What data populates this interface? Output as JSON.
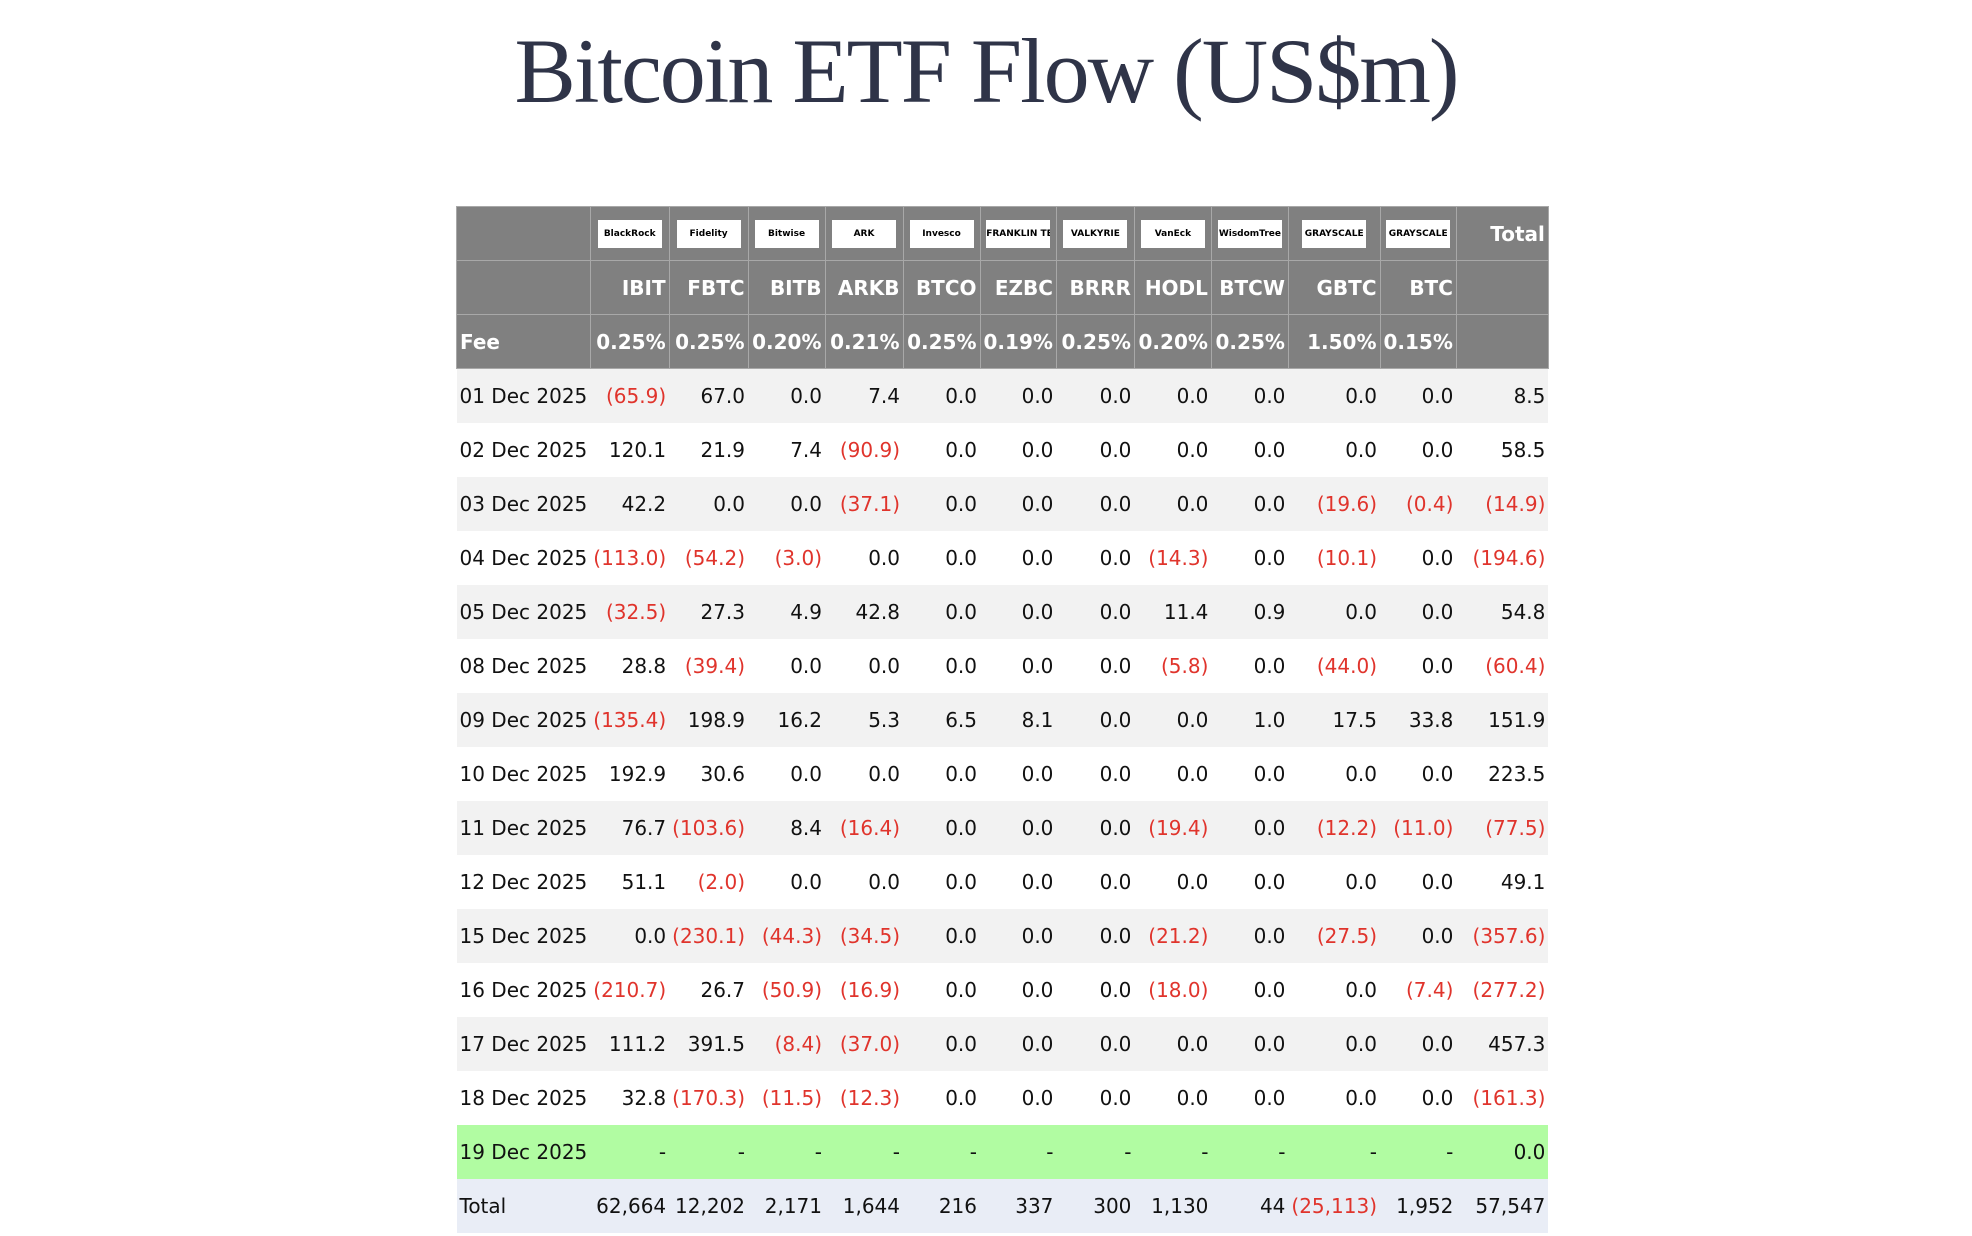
{
  "title": "Bitcoin ETF Flow (US$m)",
  "table": {
    "logos": [
      "BlackRock",
      "Fidelity",
      "Bitwise",
      "ARK",
      "Invesco",
      "FRANKLIN TEMPLETON",
      "VALKYRIE",
      "VanEck",
      "WisdomTree",
      "GRAYSCALE",
      "GRAYSCALE"
    ],
    "total_header": "Total",
    "tickers": [
      "IBIT",
      "FBTC",
      "BITB",
      "ARKB",
      "BTCO",
      "EZBC",
      "BRRR",
      "HODL",
      "BTCW",
      "GBTC",
      "BTC"
    ],
    "fee_label": "Fee",
    "fees": [
      "0.25%",
      "0.25%",
      "0.20%",
      "0.21%",
      "0.25%",
      "0.19%",
      "0.25%",
      "0.20%",
      "0.25%",
      "1.50%",
      "0.15%"
    ],
    "rows": [
      [
        "01 Dec 2025",
        "(65.9)",
        "67.0",
        "0.0",
        "7.4",
        "0.0",
        "0.0",
        "0.0",
        "0.0",
        "0.0",
        "0.0",
        "0.0",
        "8.5"
      ],
      [
        "02 Dec 2025",
        "120.1",
        "21.9",
        "7.4",
        "(90.9)",
        "0.0",
        "0.0",
        "0.0",
        "0.0",
        "0.0",
        "0.0",
        "0.0",
        "58.5"
      ],
      [
        "03 Dec 2025",
        "42.2",
        "0.0",
        "0.0",
        "(37.1)",
        "0.0",
        "0.0",
        "0.0",
        "0.0",
        "0.0",
        "(19.6)",
        "(0.4)",
        "(14.9)"
      ],
      [
        "04 Dec 2025",
        "(113.0)",
        "(54.2)",
        "(3.0)",
        "0.0",
        "0.0",
        "0.0",
        "0.0",
        "(14.3)",
        "0.0",
        "(10.1)",
        "0.0",
        "(194.6)"
      ],
      [
        "05 Dec 2025",
        "(32.5)",
        "27.3",
        "4.9",
        "42.8",
        "0.0",
        "0.0",
        "0.0",
        "11.4",
        "0.9",
        "0.0",
        "0.0",
        "54.8"
      ],
      [
        "08 Dec 2025",
        "28.8",
        "(39.4)",
        "0.0",
        "0.0",
        "0.0",
        "0.0",
        "0.0",
        "(5.8)",
        "0.0",
        "(44.0)",
        "0.0",
        "(60.4)"
      ],
      [
        "09 Dec 2025",
        "(135.4)",
        "198.9",
        "16.2",
        "5.3",
        "6.5",
        "8.1",
        "0.0",
        "0.0",
        "1.0",
        "17.5",
        "33.8",
        "151.9"
      ],
      [
        "10 Dec 2025",
        "192.9",
        "30.6",
        "0.0",
        "0.0",
        "0.0",
        "0.0",
        "0.0",
        "0.0",
        "0.0",
        "0.0",
        "0.0",
        "223.5"
      ],
      [
        "11 Dec 2025",
        "76.7",
        "(103.6)",
        "8.4",
        "(16.4)",
        "0.0",
        "0.0",
        "0.0",
        "(19.4)",
        "0.0",
        "(12.2)",
        "(11.0)",
        "(77.5)"
      ],
      [
        "12 Dec 2025",
        "51.1",
        "(2.0)",
        "0.0",
        "0.0",
        "0.0",
        "0.0",
        "0.0",
        "0.0",
        "0.0",
        "0.0",
        "0.0",
        "49.1"
      ],
      [
        "15 Dec 2025",
        "0.0",
        "(230.1)",
        "(44.3)",
        "(34.5)",
        "0.0",
        "0.0",
        "0.0",
        "(21.2)",
        "0.0",
        "(27.5)",
        "0.0",
        "(357.6)"
      ],
      [
        "16 Dec 2025",
        "(210.7)",
        "26.7",
        "(50.9)",
        "(16.9)",
        "0.0",
        "0.0",
        "0.0",
        "(18.0)",
        "0.0",
        "0.0",
        "(7.4)",
        "(277.2)"
      ],
      [
        "17 Dec 2025",
        "111.2",
        "391.5",
        "(8.4)",
        "(37.0)",
        "0.0",
        "0.0",
        "0.0",
        "0.0",
        "0.0",
        "0.0",
        "0.0",
        "457.3"
      ],
      [
        "18 Dec 2025",
        "32.8",
        "(170.3)",
        "(11.5)",
        "(12.3)",
        "0.0",
        "0.0",
        "0.0",
        "0.0",
        "0.0",
        "0.0",
        "0.0",
        "(161.3)"
      ],
      [
        "19 Dec 2025",
        "-",
        "-",
        "-",
        "-",
        "-",
        "-",
        "-",
        "-",
        "-",
        "-",
        "-",
        "0.0"
      ]
    ],
    "total_row": [
      "Total",
      "62,664",
      "12,202",
      "2,171",
      "1,644",
      "216",
      "337",
      "300",
      "1,130",
      "44",
      "(25,113)",
      "1,952",
      "57,547"
    ]
  }
}
